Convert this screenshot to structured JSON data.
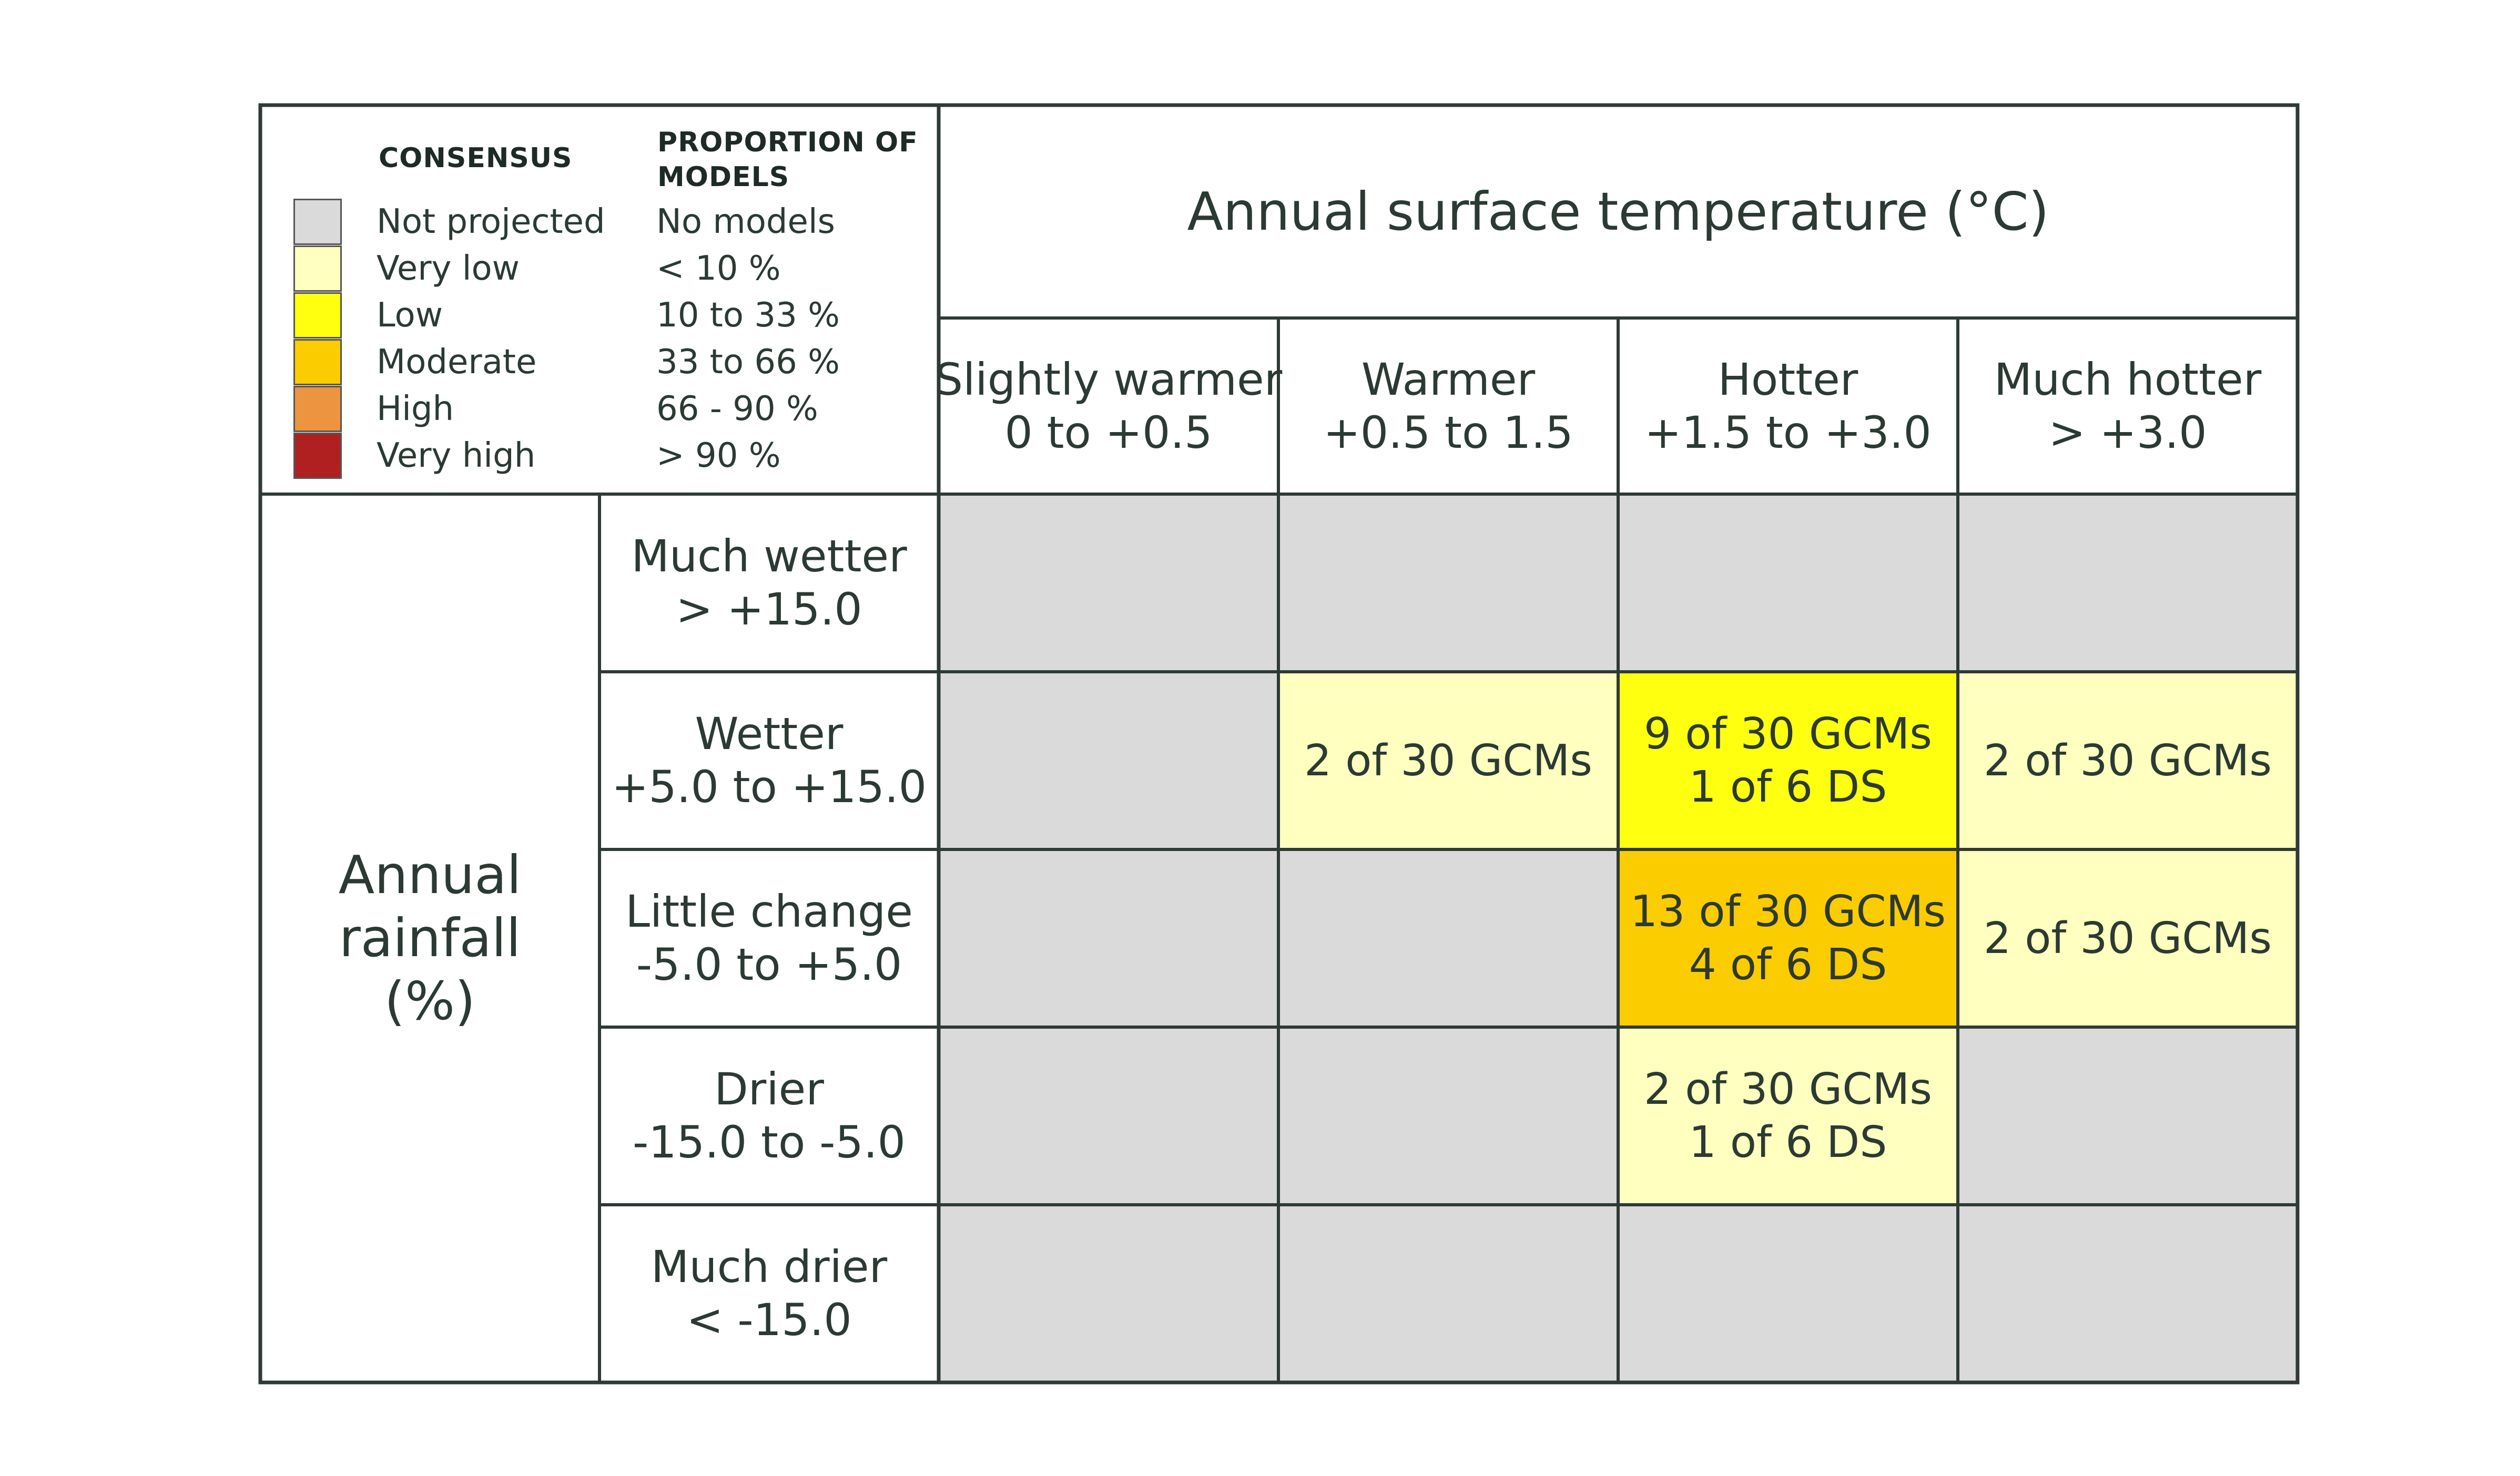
{
  "legend": {
    "consensus_header": "CONSENSUS",
    "proportion_header_line1": "PROPORTION OF",
    "proportion_header_line2": "MODELS",
    "items": [
      {
        "label": "Not projected",
        "proportion": "No models",
        "color": "#dadada"
      },
      {
        "label": "Very low",
        "proportion": "< 10 %",
        "color": "#ffffc0"
      },
      {
        "label": "Low",
        "proportion": "10 to 33 %",
        "color": "#ffff10"
      },
      {
        "label": "Moderate",
        "proportion": "33 to 66 %",
        "color": "#fbcc00"
      },
      {
        "label": "High",
        "proportion": "66 - 90 %",
        "color": "#ec9440"
      },
      {
        "label": "Very high",
        "proportion": "> 90 %",
        "color": "#b02020"
      }
    ]
  },
  "chart_data": {
    "type": "table",
    "title": "Annual surface temperature (°C)",
    "row_axis_title": [
      "Annual",
      "rainfall",
      "(%)"
    ],
    "columns": [
      {
        "name": "Slightly warmer",
        "range": "0 to +0.5"
      },
      {
        "name": "Warmer",
        "range": "+0.5 to 1.5"
      },
      {
        "name": "Hotter",
        "range": "+1.5 to +3.0"
      },
      {
        "name": "Much hotter",
        "range": "> +3.0"
      }
    ],
    "rows": [
      {
        "name": "Much wetter",
        "range": "> +15.0"
      },
      {
        "name": "Wetter",
        "range": "+5.0 to +15.0"
      },
      {
        "name": "Little change",
        "range": "-5.0 to +5.0"
      },
      {
        "name": "Drier",
        "range": "-15.0 to -5.0"
      },
      {
        "name": "Much drier",
        "range": "< -15.0"
      }
    ],
    "cells": [
      [
        {
          "lines": [],
          "consensus": "Not projected"
        },
        {
          "lines": [],
          "consensus": "Not projected"
        },
        {
          "lines": [],
          "consensus": "Not projected"
        },
        {
          "lines": [],
          "consensus": "Not projected"
        }
      ],
      [
        {
          "lines": [],
          "consensus": "Not projected"
        },
        {
          "lines": [
            "2 of 30 GCMs"
          ],
          "consensus": "Very low"
        },
        {
          "lines": [
            "9 of 30 GCMs",
            "1 of 6 DS"
          ],
          "consensus": "Low"
        },
        {
          "lines": [
            "2 of 30 GCMs"
          ],
          "consensus": "Very low"
        }
      ],
      [
        {
          "lines": [],
          "consensus": "Not projected"
        },
        {
          "lines": [],
          "consensus": "Not projected"
        },
        {
          "lines": [
            "13 of 30 GCMs",
            "4 of 6 DS"
          ],
          "consensus": "Moderate"
        },
        {
          "lines": [
            "2 of 30 GCMs"
          ],
          "consensus": "Very low"
        }
      ],
      [
        {
          "lines": [],
          "consensus": "Not projected"
        },
        {
          "lines": [],
          "consensus": "Not projected"
        },
        {
          "lines": [
            "2 of 30 GCMs",
            "1 of 6 DS"
          ],
          "consensus": "Very low"
        },
        {
          "lines": [],
          "consensus": "Not projected"
        }
      ],
      [
        {
          "lines": [],
          "consensus": "Not projected"
        },
        {
          "lines": [],
          "consensus": "Not projected"
        },
        {
          "lines": [],
          "consensus": "Not projected"
        },
        {
          "lines": [],
          "consensus": "Not projected"
        }
      ]
    ],
    "border_color": "#2f3a35"
  }
}
